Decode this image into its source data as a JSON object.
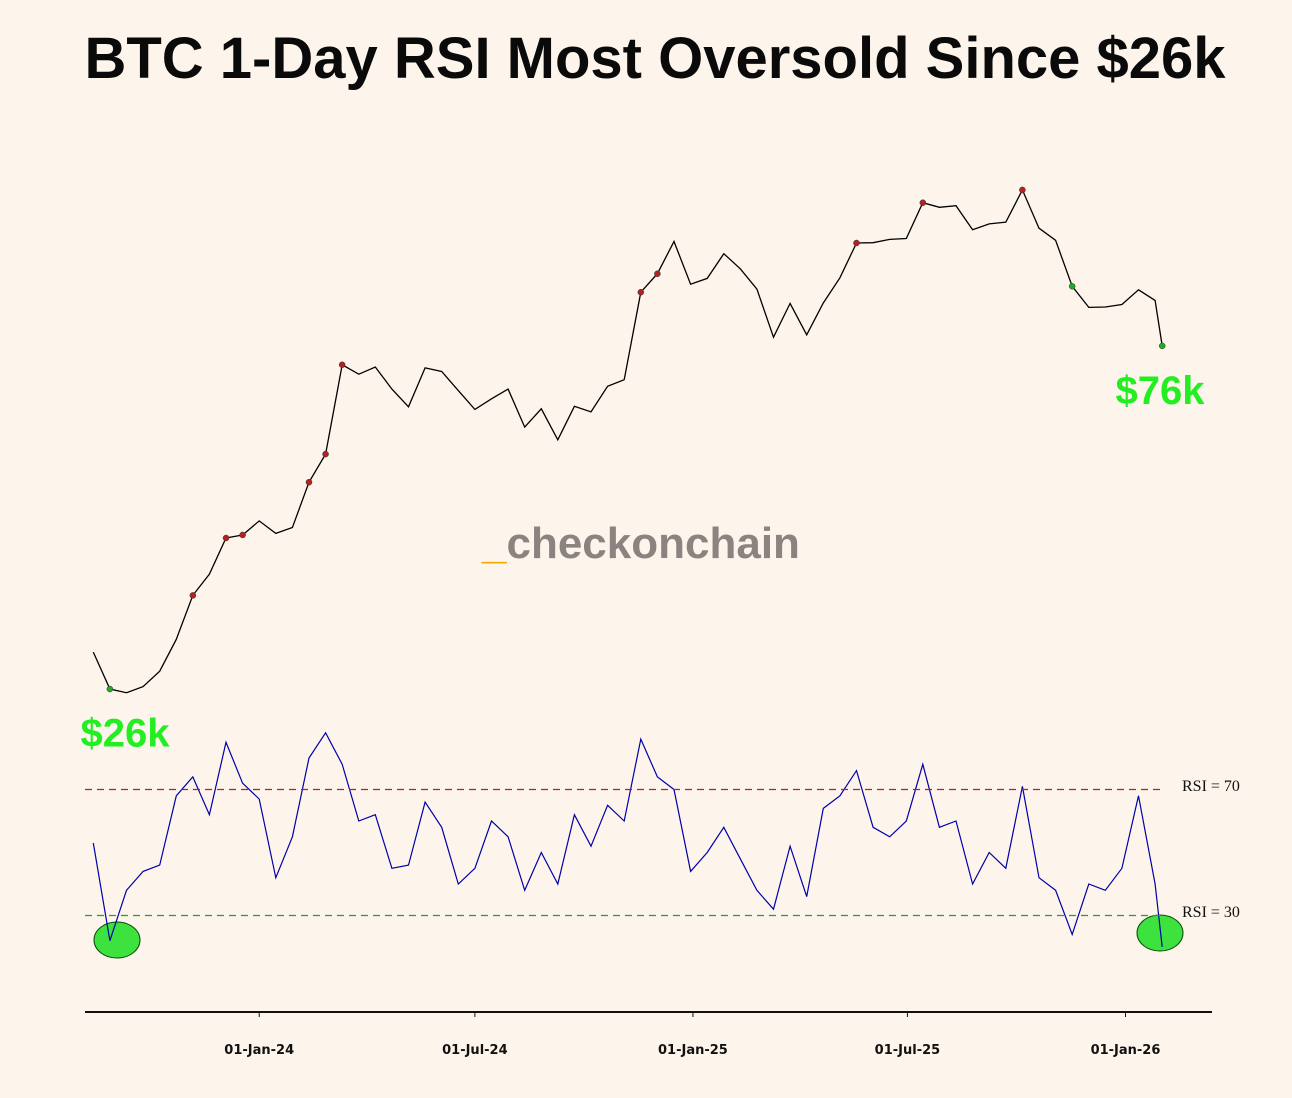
{
  "chart_data": [
    {
      "type": "line",
      "title": "BTC 1-Day RSI Most Oversold Since $26k",
      "log_scale": true,
      "ylim": [
        20000,
        140000
      ],
      "xlim": [
        "2023-08-07",
        "2026-03-15"
      ],
      "color": "#000000",
      "marker_colors": {
        "overbought": "#b22222",
        "oversold": "#22aa22"
      },
      "watermark": [
        "_",
        "checkonchain"
      ],
      "annotations": [
        {
          "text": "$26k",
          "value": 26000,
          "color": "#22ee22"
        },
        {
          "text": "$76k",
          "value": 76000,
          "color": "#22ee22"
        }
      ],
      "x": [
        "2023-08-14",
        "2023-08-28",
        "2023-09-11",
        "2023-09-25",
        "2023-10-09",
        "2023-10-23",
        "2023-11-06",
        "2023-11-20",
        "2023-12-04",
        "2023-12-18",
        "2024-01-01",
        "2024-01-15",
        "2024-01-29",
        "2024-02-12",
        "2024-02-26",
        "2024-03-11",
        "2024-03-25",
        "2024-04-08",
        "2024-04-22",
        "2024-05-06",
        "2024-05-20",
        "2024-06-03",
        "2024-06-17",
        "2024-07-01",
        "2024-07-15",
        "2024-07-29",
        "2024-08-12",
        "2024-08-26",
        "2024-09-09",
        "2024-09-23",
        "2024-10-07",
        "2024-10-21",
        "2024-11-04",
        "2024-11-18",
        "2024-12-02",
        "2024-12-16",
        "2024-12-30",
        "2025-01-13",
        "2025-01-27",
        "2025-02-10",
        "2025-02-24",
        "2025-03-10",
        "2025-03-24",
        "2025-04-07",
        "2025-04-21",
        "2025-05-05",
        "2025-05-19",
        "2025-06-02",
        "2025-06-16",
        "2025-06-30",
        "2025-07-14",
        "2025-07-28",
        "2025-08-11",
        "2025-08-25",
        "2025-09-08",
        "2025-09-22",
        "2025-10-06",
        "2025-10-20",
        "2025-11-03",
        "2025-11-17",
        "2025-12-01",
        "2025-12-15",
        "2025-12-29",
        "2026-01-12",
        "2026-01-26",
        "2026-02-01"
      ],
      "values": [
        29300,
        26100,
        25800,
        26300,
        27600,
        30500,
        35000,
        37400,
        41900,
        42300,
        44200,
        42500,
        43300,
        49900,
        54500,
        72100,
        70000,
        71600,
        66800,
        63200,
        71400,
        70600,
        66500,
        62700,
        64800,
        66800,
        59300,
        62800,
        57000,
        63300,
        62200,
        67400,
        68800,
        90500,
        95900,
        106100,
        92800,
        94500,
        102100,
        97400,
        91400,
        78600,
        87400,
        79200,
        87500,
        94700,
        105600,
        105700,
        106800,
        107100,
        119800,
        118100,
        118700,
        110100,
        112100,
        112700,
        124700,
        110600,
        106500,
        92200,
        86300,
        86400,
        87100,
        91200,
        88200,
        76500
      ]
    },
    {
      "type": "line",
      "ylim": [
        0,
        100
      ],
      "xlim": [
        "2023-08-07",
        "2026-03-15"
      ],
      "color": "#0000aa",
      "hlines": [
        {
          "value": 70,
          "label": "RSI = 70",
          "color": "#b22222"
        },
        {
          "value": 30,
          "label": "RSI = 30",
          "color": "#2a9d2a"
        }
      ],
      "xticks": [
        {
          "value": "2024-01-01",
          "label": "01-Jan-24"
        },
        {
          "value": "2024-07-01",
          "label": "01-Jul-24"
        },
        {
          "value": "2025-01-01",
          "label": "01-Jan-25"
        },
        {
          "value": "2025-07-01",
          "label": "01-Jul-25"
        },
        {
          "value": "2026-01-01",
          "label": "01-Jan-26"
        }
      ],
      "x": [
        "2023-08-14",
        "2023-08-28",
        "2023-09-11",
        "2023-09-25",
        "2023-10-09",
        "2023-10-23",
        "2023-11-06",
        "2023-11-20",
        "2023-12-04",
        "2023-12-18",
        "2024-01-01",
        "2024-01-15",
        "2024-01-29",
        "2024-02-12",
        "2024-02-26",
        "2024-03-11",
        "2024-03-25",
        "2024-04-08",
        "2024-04-22",
        "2024-05-06",
        "2024-05-20",
        "2024-06-03",
        "2024-06-17",
        "2024-07-01",
        "2024-07-15",
        "2024-07-29",
        "2024-08-12",
        "2024-08-26",
        "2024-09-09",
        "2024-09-23",
        "2024-10-07",
        "2024-10-21",
        "2024-11-04",
        "2024-11-18",
        "2024-12-02",
        "2024-12-16",
        "2024-12-30",
        "2025-01-13",
        "2025-01-27",
        "2025-02-10",
        "2025-02-24",
        "2025-03-10",
        "2025-03-24",
        "2025-04-07",
        "2025-04-21",
        "2025-05-05",
        "2025-05-19",
        "2025-06-02",
        "2025-06-16",
        "2025-06-30",
        "2025-07-14",
        "2025-07-28",
        "2025-08-11",
        "2025-08-25",
        "2025-09-08",
        "2025-09-22",
        "2025-10-06",
        "2025-10-20",
        "2025-11-03",
        "2025-11-17",
        "2025-12-01",
        "2025-12-15",
        "2025-12-29",
        "2026-01-12",
        "2026-01-26",
        "2026-02-01"
      ],
      "values": [
        53,
        22,
        38,
        44,
        46,
        68,
        74,
        62,
        85,
        72,
        67,
        42,
        55,
        80,
        88,
        78,
        60,
        62,
        45,
        46,
        66,
        58,
        40,
        45,
        60,
        55,
        38,
        50,
        40,
        62,
        52,
        65,
        60,
        86,
        74,
        70,
        44,
        50,
        58,
        48,
        38,
        32,
        52,
        36,
        64,
        68,
        76,
        58,
        55,
        60,
        78,
        58,
        60,
        40,
        50,
        45,
        71,
        42,
        38,
        24,
        40,
        38,
        45,
        68,
        40,
        20
      ]
    }
  ]
}
